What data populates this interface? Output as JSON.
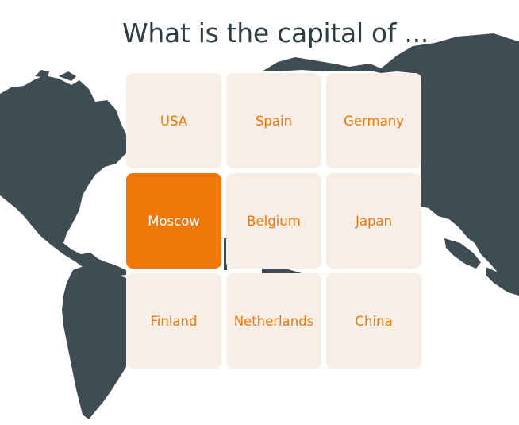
{
  "title": "What is the capital of ...",
  "colors": {
    "map": "#404c53",
    "tile_bg": "#f8eee5",
    "tile_text": "#f0780a",
    "selected_bg": "#f0780a",
    "selected_text": "#ffffff",
    "title_text": "#2f3d44"
  },
  "tiles": [
    {
      "label": "USA",
      "selected": false
    },
    {
      "label": "Spain",
      "selected": false
    },
    {
      "label": "Germany",
      "selected": false
    },
    {
      "label": "Moscow",
      "selected": true
    },
    {
      "label": "Belgium",
      "selected": false
    },
    {
      "label": "Japan",
      "selected": false
    },
    {
      "label": "Finland",
      "selected": false
    },
    {
      "label": "Netherlands",
      "selected": false
    },
    {
      "label": "China",
      "selected": false
    }
  ]
}
